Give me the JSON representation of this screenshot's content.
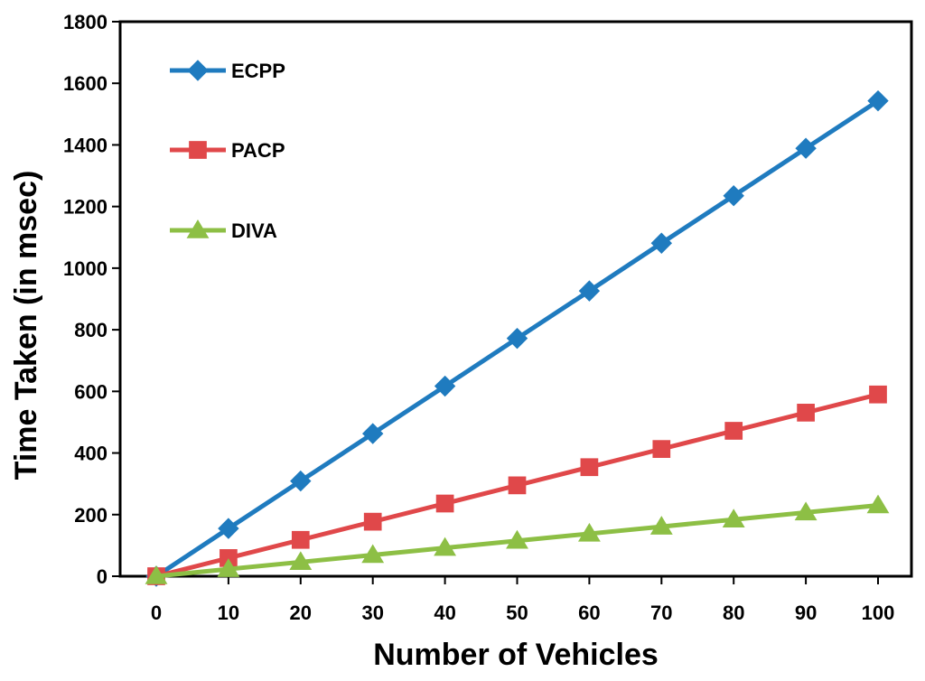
{
  "chart_data": {
    "type": "line",
    "title": "",
    "xlabel": "Number of Vehicles",
    "ylabel": "Time Taken (in msec)",
    "x": [
      0,
      10,
      20,
      30,
      40,
      50,
      60,
      70,
      80,
      90,
      100
    ],
    "xlim": [
      0,
      100
    ],
    "ylim": [
      0,
      1800
    ],
    "yticks": [
      0,
      200,
      400,
      600,
      800,
      1000,
      1200,
      1400,
      1600,
      1800
    ],
    "xticks": [
      0,
      10,
      20,
      30,
      40,
      50,
      60,
      70,
      80,
      90,
      100
    ],
    "grid": false,
    "legend_position": "top-left",
    "series": [
      {
        "name": "ECPP",
        "color": "#1f7bbf",
        "marker": "diamond",
        "values": [
          0,
          155,
          309,
          463,
          617,
          772,
          926,
          1081,
          1235,
          1389,
          1543
        ]
      },
      {
        "name": "PACP",
        "color": "#e0484a",
        "marker": "square",
        "values": [
          0,
          59,
          118,
          177,
          236,
          295,
          354,
          413,
          472,
          531,
          590
        ]
      },
      {
        "name": "DIVA",
        "color": "#8dbf45",
        "marker": "triangle",
        "values": [
          0,
          23,
          46,
          69,
          92,
          115,
          138,
          161,
          184,
          207,
          230
        ]
      }
    ]
  }
}
